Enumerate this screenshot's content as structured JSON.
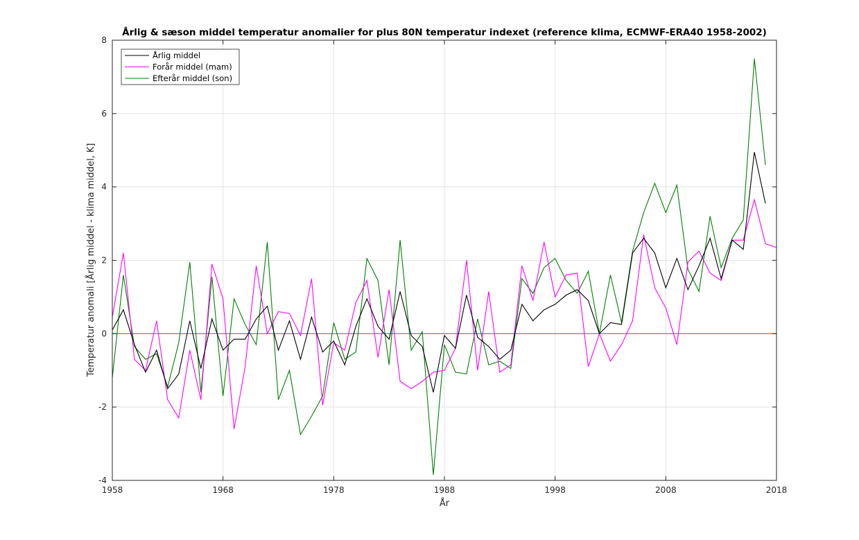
{
  "chart_data": {
    "type": "line",
    "title": "Årlig & sæson middel temperatur anomalier for plus 80N temperatur indexet (reference klima, ECMWF-ERA40 1958-2002)",
    "xlabel": "År",
    "ylabel": "Temperatur anomali [Årlig middel - klima middel, K]",
    "xlim": [
      1958,
      2018
    ],
    "ylim": [
      -4,
      8
    ],
    "xticks": [
      1958,
      1968,
      1978,
      1988,
      1998,
      2008,
      2018
    ],
    "yticks": [
      -4,
      -2,
      0,
      2,
      4,
      6,
      8
    ],
    "grid": true,
    "legend_position": "top-left",
    "reference_line": {
      "y": 0,
      "color": "#d95319"
    },
    "x": [
      1958,
      1959,
      1960,
      1961,
      1962,
      1963,
      1964,
      1965,
      1966,
      1967,
      1968,
      1969,
      1970,
      1971,
      1972,
      1973,
      1974,
      1975,
      1976,
      1977,
      1978,
      1979,
      1980,
      1981,
      1982,
      1983,
      1984,
      1985,
      1986,
      1987,
      1988,
      1989,
      1990,
      1991,
      1992,
      1993,
      1994,
      1995,
      1996,
      1997,
      1998,
      1999,
      2000,
      2001,
      2002,
      2003,
      2004,
      2005,
      2006,
      2007,
      2008,
      2009,
      2010,
      2011,
      2012,
      2013,
      2014,
      2015,
      2016,
      2017,
      2018
    ],
    "series": [
      {
        "name": "Årlig middel",
        "color": "#000000",
        "values": [
          0.1,
          0.65,
          -0.3,
          -1.05,
          -0.45,
          -1.5,
          -1.1,
          0.35,
          -0.95,
          0.4,
          -0.45,
          -0.15,
          -0.15,
          0.4,
          0.75,
          -0.45,
          0.35,
          -0.7,
          0.45,
          -0.5,
          -0.2,
          -0.85,
          0.2,
          0.95,
          0.2,
          -0.15,
          1.15,
          -0.05,
          -0.35,
          -1.6,
          -0.05,
          -0.4,
          1.05,
          -0.1,
          -0.35,
          -0.7,
          -0.45,
          0.8,
          0.35,
          0.65,
          0.8,
          1.05,
          1.2,
          0.9,
          0.0,
          0.3,
          0.25,
          2.2,
          2.6,
          2.2,
          1.25,
          2.05,
          1.2,
          1.85,
          2.6,
          1.5,
          2.55,
          2.3,
          4.95,
          3.55,
          null
        ]
      },
      {
        "name": "Forår middel (mam)",
        "color": "#ff00ff",
        "values": [
          0.45,
          2.2,
          -0.7,
          -1.0,
          0.35,
          -1.8,
          -2.3,
          -0.45,
          -1.8,
          1.9,
          0.95,
          -2.6,
          -0.9,
          1.85,
          0.0,
          0.6,
          0.55,
          -0.05,
          1.5,
          -1.95,
          -0.25,
          -0.45,
          0.85,
          1.45,
          -0.65,
          1.2,
          -1.3,
          -1.5,
          -1.3,
          -1.05,
          -1.0,
          -0.4,
          2.0,
          -1.0,
          1.15,
          -1.05,
          -0.85,
          1.85,
          0.9,
          2.5,
          1.0,
          1.6,
          1.65,
          -0.9,
          0.0,
          -0.75,
          -0.3,
          0.35,
          2.7,
          1.25,
          0.7,
          -0.3,
          1.95,
          2.25,
          1.65,
          1.45,
          2.55,
          2.55,
          3.65,
          2.45,
          2.35
        ]
      },
      {
        "name": "Efterår middel (son)",
        "color": "#008000",
        "values": [
          -1.2,
          1.6,
          -0.35,
          -0.7,
          -0.55,
          -1.45,
          -0.25,
          1.95,
          -1.6,
          1.55,
          -1.7,
          0.95,
          0.25,
          -0.3,
          2.5,
          -1.8,
          -1.0,
          -2.75,
          -2.25,
          -1.7,
          0.3,
          -0.7,
          -0.5,
          2.05,
          1.45,
          -0.85,
          2.55,
          -0.45,
          0.05,
          -3.85,
          -0.3,
          -1.05,
          -1.1,
          0.4,
          -0.85,
          -0.75,
          -0.95,
          1.5,
          1.1,
          1.8,
          2.05,
          1.45,
          1.1,
          1.7,
          0.0,
          1.6,
          0.3,
          2.25,
          3.3,
          4.1,
          3.3,
          4.05,
          1.75,
          1.15,
          3.2,
          1.8,
          2.6,
          3.1,
          7.5,
          4.6,
          null
        ]
      }
    ]
  }
}
